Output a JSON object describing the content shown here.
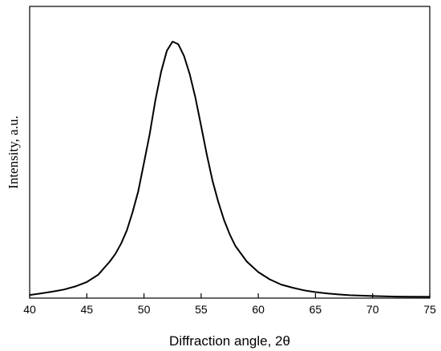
{
  "chart_data": {
    "type": "line",
    "title": "",
    "xlabel": "Diffraction angle, 2θ",
    "ylabel": "Intensity, a.u.",
    "xlim": [
      40,
      75
    ],
    "ylim": [
      0,
      1.12
    ],
    "x_ticks": [
      40,
      45,
      50,
      55,
      60,
      65,
      70,
      75
    ],
    "x_tick_labels": [
      "40",
      "45",
      "50",
      "55",
      "60",
      "65",
      "70",
      "75"
    ],
    "y_ticks": [],
    "grid": false,
    "legend": "none",
    "line_color": "#000000",
    "series": [
      {
        "x": [
          40.0,
          41.0,
          42.0,
          43.0,
          44.0,
          45.0,
          46.0,
          47.0,
          47.5,
          48.0,
          48.5,
          49.0,
          49.5,
          50.0,
          50.5,
          51.0,
          51.5,
          52.0,
          52.5,
          53.0,
          53.5,
          54.0,
          54.5,
          55.0,
          55.5,
          56.0,
          56.5,
          57.0,
          57.5,
          58.0,
          59.0,
          60.0,
          61.0,
          62.0,
          63.0,
          64.0,
          65.0,
          66.0,
          67.0,
          68.0,
          70.0,
          72.0,
          75.0
        ],
        "y": [
          0.012,
          0.018,
          0.025,
          0.033,
          0.045,
          0.062,
          0.09,
          0.14,
          0.17,
          0.21,
          0.26,
          0.33,
          0.41,
          0.52,
          0.63,
          0.76,
          0.87,
          0.95,
          0.985,
          0.975,
          0.93,
          0.86,
          0.77,
          0.66,
          0.55,
          0.45,
          0.37,
          0.3,
          0.245,
          0.2,
          0.14,
          0.1,
          0.072,
          0.052,
          0.04,
          0.03,
          0.023,
          0.018,
          0.014,
          0.011,
          0.008,
          0.006,
          0.005
        ]
      }
    ]
  }
}
